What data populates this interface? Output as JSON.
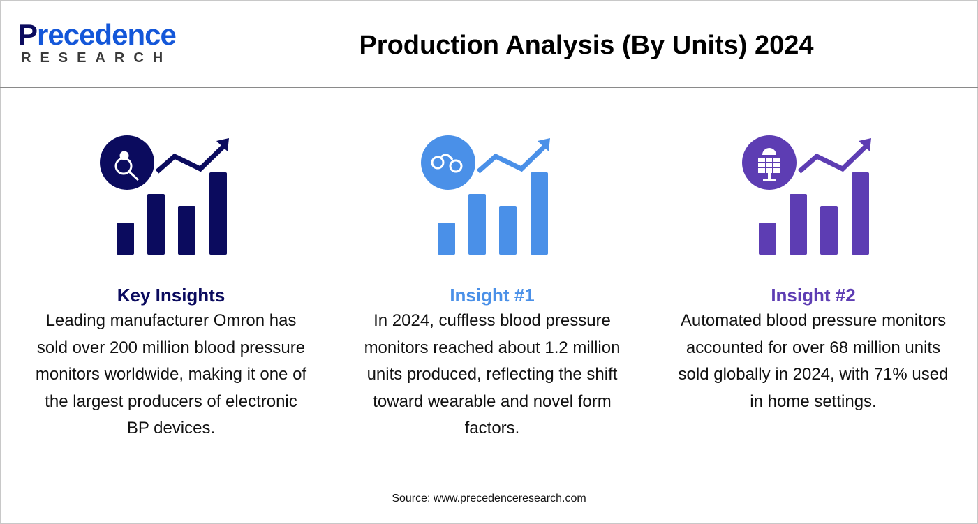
{
  "logo": {
    "line1a": "P",
    "line1b": "recedence",
    "line2": "RESEARCH"
  },
  "title": "Production Analysis (By Units) 2024",
  "colors": {
    "navy": "#0b0b5e",
    "blue": "#4a90e8",
    "purple": "#5d3db3"
  },
  "insights": [
    {
      "icon": "lightbulb-search-icon",
      "heading": "Key Insights",
      "text": "Leading manufacturer Omron has sold over 200 million blood pressure monitors worldwide, making it one of the largest producers of electronic BP devices."
    },
    {
      "icon": "handcuffs-icon",
      "heading": "Insight #1",
      "text": "In 2024, cuffless blood pressure monitors reached about 1.2 million units produced, reflecting the shift toward wearable and novel form factors."
    },
    {
      "icon": "solar-panel-icon",
      "heading": "Insight #2",
      "text": "Automated blood pressure monitors accounted for over 68 million units sold globally in 2024, with 71% used in home settings."
    }
  ],
  "source": "Source: www.precedenceresearch.com"
}
